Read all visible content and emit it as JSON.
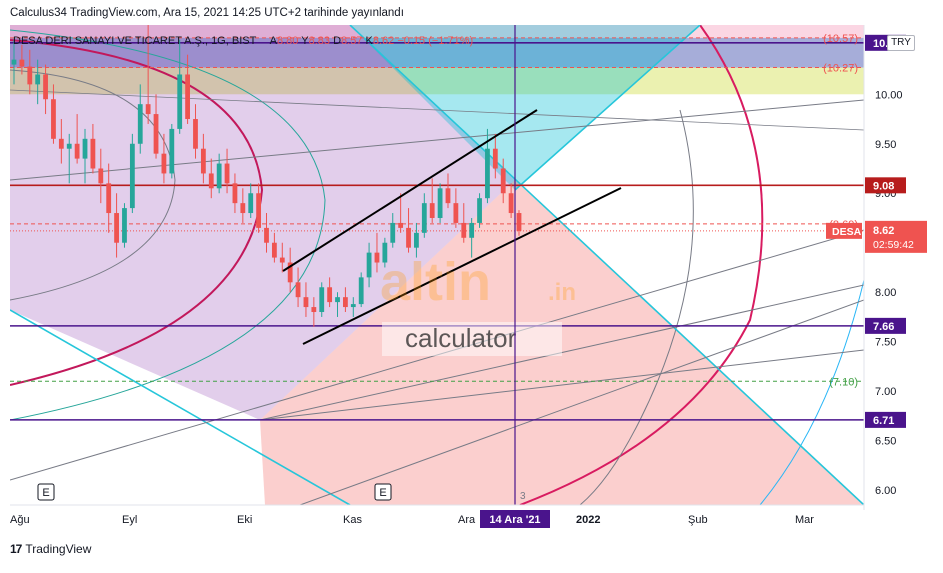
{
  "header": {
    "published": "Calculus34 TradingView.com, Ara 15, 2021 14:25 UTC+2 tarihinde yayınlandı"
  },
  "legend": {
    "symbol": "DESA DERI SANAYI VE TICARET A.Ş., 1G, BIST",
    "open_label": "A",
    "open": "8.80",
    "high_label": "Y",
    "high": "8.83",
    "low_label": "D",
    "low": "8.57",
    "close_label": "K",
    "close": "8.62",
    "change": "−0.15 (−1.71%)"
  },
  "currency_button": "TRY",
  "watermark": {
    "brand": "altin",
    "tld": ".in",
    "sub": "calculator"
  },
  "footer": {
    "logo_text": "TradingView"
  },
  "colors": {
    "candle_up": "#26a69a",
    "candle_down": "#ef5350",
    "accent_red": "#b71c1c",
    "accent_purple": "#4a148c",
    "price_badge": "#ef5350",
    "axis_text": "#131722"
  },
  "chart_data": {
    "type": "candlestick",
    "y_range": [
      5.85,
      10.7
    ],
    "y_ticks": [
      "6.00",
      "6.50",
      "7.00",
      "7.50",
      "8.00",
      "9.00",
      "9.50",
      "10.00"
    ],
    "x_ticks": [
      "Ağu",
      "Eyl",
      "Eki",
      "Kas",
      "Ara",
      "2022",
      "Şub",
      "Mar"
    ],
    "crosshair_date_label": "14 Ara '21",
    "event_markers": [
      "E",
      "E"
    ],
    "bar_count_label": "3",
    "symbol_badge": "DESA",
    "last_price": "8.62",
    "countdown": "02:59:42",
    "horizontal_levels": [
      {
        "value": 10.52,
        "label": "10.52",
        "style": "badge",
        "color": "#4a148c"
      },
      {
        "value": 10.57,
        "label": "(10.57)",
        "style": "dashed-text",
        "color": "#ef5350"
      },
      {
        "value": 10.27,
        "label": "(10.27)",
        "style": "dashed-text",
        "color": "#ef5350"
      },
      {
        "value": 9.08,
        "label": "9.08",
        "style": "badge",
        "color": "#b71c1c"
      },
      {
        "value": 8.69,
        "label": "(8.69)",
        "style": "dashed-text",
        "color": "#ef5350"
      },
      {
        "value": 7.66,
        "label": "7.66",
        "style": "badge",
        "color": "#4a148c"
      },
      {
        "value": 7.1,
        "label": "(7.10)",
        "style": "dashed-text",
        "color": "#43a047"
      },
      {
        "value": 6.71,
        "label": "6.71",
        "style": "badge",
        "color": "#4a148c"
      }
    ],
    "series": [
      {
        "name": "DESA",
        "ohlc": [
          [
            10.3,
            10.55,
            10.1,
            10.35
          ],
          [
            10.35,
            10.5,
            10.2,
            10.28
          ],
          [
            10.28,
            10.45,
            10.0,
            10.1
          ],
          [
            10.1,
            10.35,
            9.9,
            10.2
          ],
          [
            10.2,
            10.3,
            9.8,
            9.95
          ],
          [
            9.95,
            10.1,
            9.5,
            9.55
          ],
          [
            9.55,
            9.75,
            9.3,
            9.45
          ],
          [
            9.45,
            9.6,
            9.1,
            9.5
          ],
          [
            9.5,
            9.8,
            9.3,
            9.35
          ],
          [
            9.35,
            9.65,
            9.1,
            9.55
          ],
          [
            9.55,
            9.7,
            9.2,
            9.25
          ],
          [
            9.25,
            9.45,
            8.9,
            9.1
          ],
          [
            9.1,
            9.3,
            8.6,
            8.8
          ],
          [
            8.8,
            9.0,
            8.35,
            8.5
          ],
          [
            8.5,
            8.9,
            8.45,
            8.85
          ],
          [
            8.85,
            9.6,
            8.8,
            9.5
          ],
          [
            9.5,
            10.1,
            9.4,
            9.9
          ],
          [
            9.9,
            10.8,
            9.7,
            9.8
          ],
          [
            9.8,
            10.0,
            9.35,
            9.4
          ],
          [
            9.4,
            9.6,
            9.1,
            9.2
          ],
          [
            9.2,
            9.7,
            9.15,
            9.65
          ],
          [
            9.65,
            10.55,
            9.6,
            10.2
          ],
          [
            10.2,
            10.4,
            9.7,
            9.75
          ],
          [
            9.75,
            9.9,
            9.35,
            9.45
          ],
          [
            9.45,
            9.6,
            9.1,
            9.2
          ],
          [
            9.2,
            9.35,
            8.95,
            9.05
          ],
          [
            9.05,
            9.4,
            9.0,
            9.3
          ],
          [
            9.3,
            9.45,
            9.0,
            9.1
          ],
          [
            9.1,
            9.2,
            8.8,
            8.9
          ],
          [
            8.9,
            9.05,
            8.7,
            8.8
          ],
          [
            8.8,
            9.1,
            8.75,
            9.0
          ],
          [
            9.0,
            9.1,
            8.6,
            8.65
          ],
          [
            8.65,
            8.8,
            8.4,
            8.5
          ],
          [
            8.5,
            8.6,
            8.3,
            8.35
          ],
          [
            8.35,
            8.5,
            8.2,
            8.3
          ],
          [
            8.3,
            8.45,
            8.0,
            8.1
          ],
          [
            8.1,
            8.25,
            7.85,
            7.95
          ],
          [
            7.95,
            8.1,
            7.75,
            7.85
          ],
          [
            7.85,
            7.95,
            7.65,
            7.8
          ],
          [
            7.8,
            8.1,
            7.75,
            8.05
          ],
          [
            8.05,
            8.15,
            7.85,
            7.9
          ],
          [
            7.9,
            8.0,
            7.75,
            7.95
          ],
          [
            7.95,
            8.05,
            7.8,
            7.85
          ],
          [
            7.85,
            7.95,
            7.75,
            7.88
          ],
          [
            7.88,
            8.2,
            7.85,
            8.15
          ],
          [
            8.15,
            8.5,
            8.05,
            8.4
          ],
          [
            8.4,
            8.6,
            8.2,
            8.3
          ],
          [
            8.3,
            8.55,
            8.25,
            8.5
          ],
          [
            8.5,
            8.8,
            8.45,
            8.7
          ],
          [
            8.7,
            9.0,
            8.6,
            8.65
          ],
          [
            8.65,
            8.85,
            8.4,
            8.45
          ],
          [
            8.45,
            8.7,
            8.35,
            8.6
          ],
          [
            8.6,
            9.0,
            8.55,
            8.9
          ],
          [
            8.9,
            9.15,
            8.7,
            8.75
          ],
          [
            8.75,
            9.1,
            8.7,
            9.05
          ],
          [
            9.05,
            9.2,
            8.85,
            8.9
          ],
          [
            8.9,
            9.05,
            8.65,
            8.7
          ],
          [
            8.7,
            8.9,
            8.5,
            8.55
          ],
          [
            8.55,
            8.75,
            8.35,
            8.7
          ],
          [
            8.7,
            9.0,
            8.65,
            8.95
          ],
          [
            8.95,
            9.65,
            8.9,
            9.45
          ],
          [
            9.45,
            9.6,
            9.15,
            9.25
          ],
          [
            9.25,
            9.35,
            8.9,
            9.0
          ],
          [
            9.0,
            9.1,
            8.75,
            8.8
          ],
          [
            8.8,
            8.83,
            8.57,
            8.62
          ]
        ]
      }
    ]
  }
}
